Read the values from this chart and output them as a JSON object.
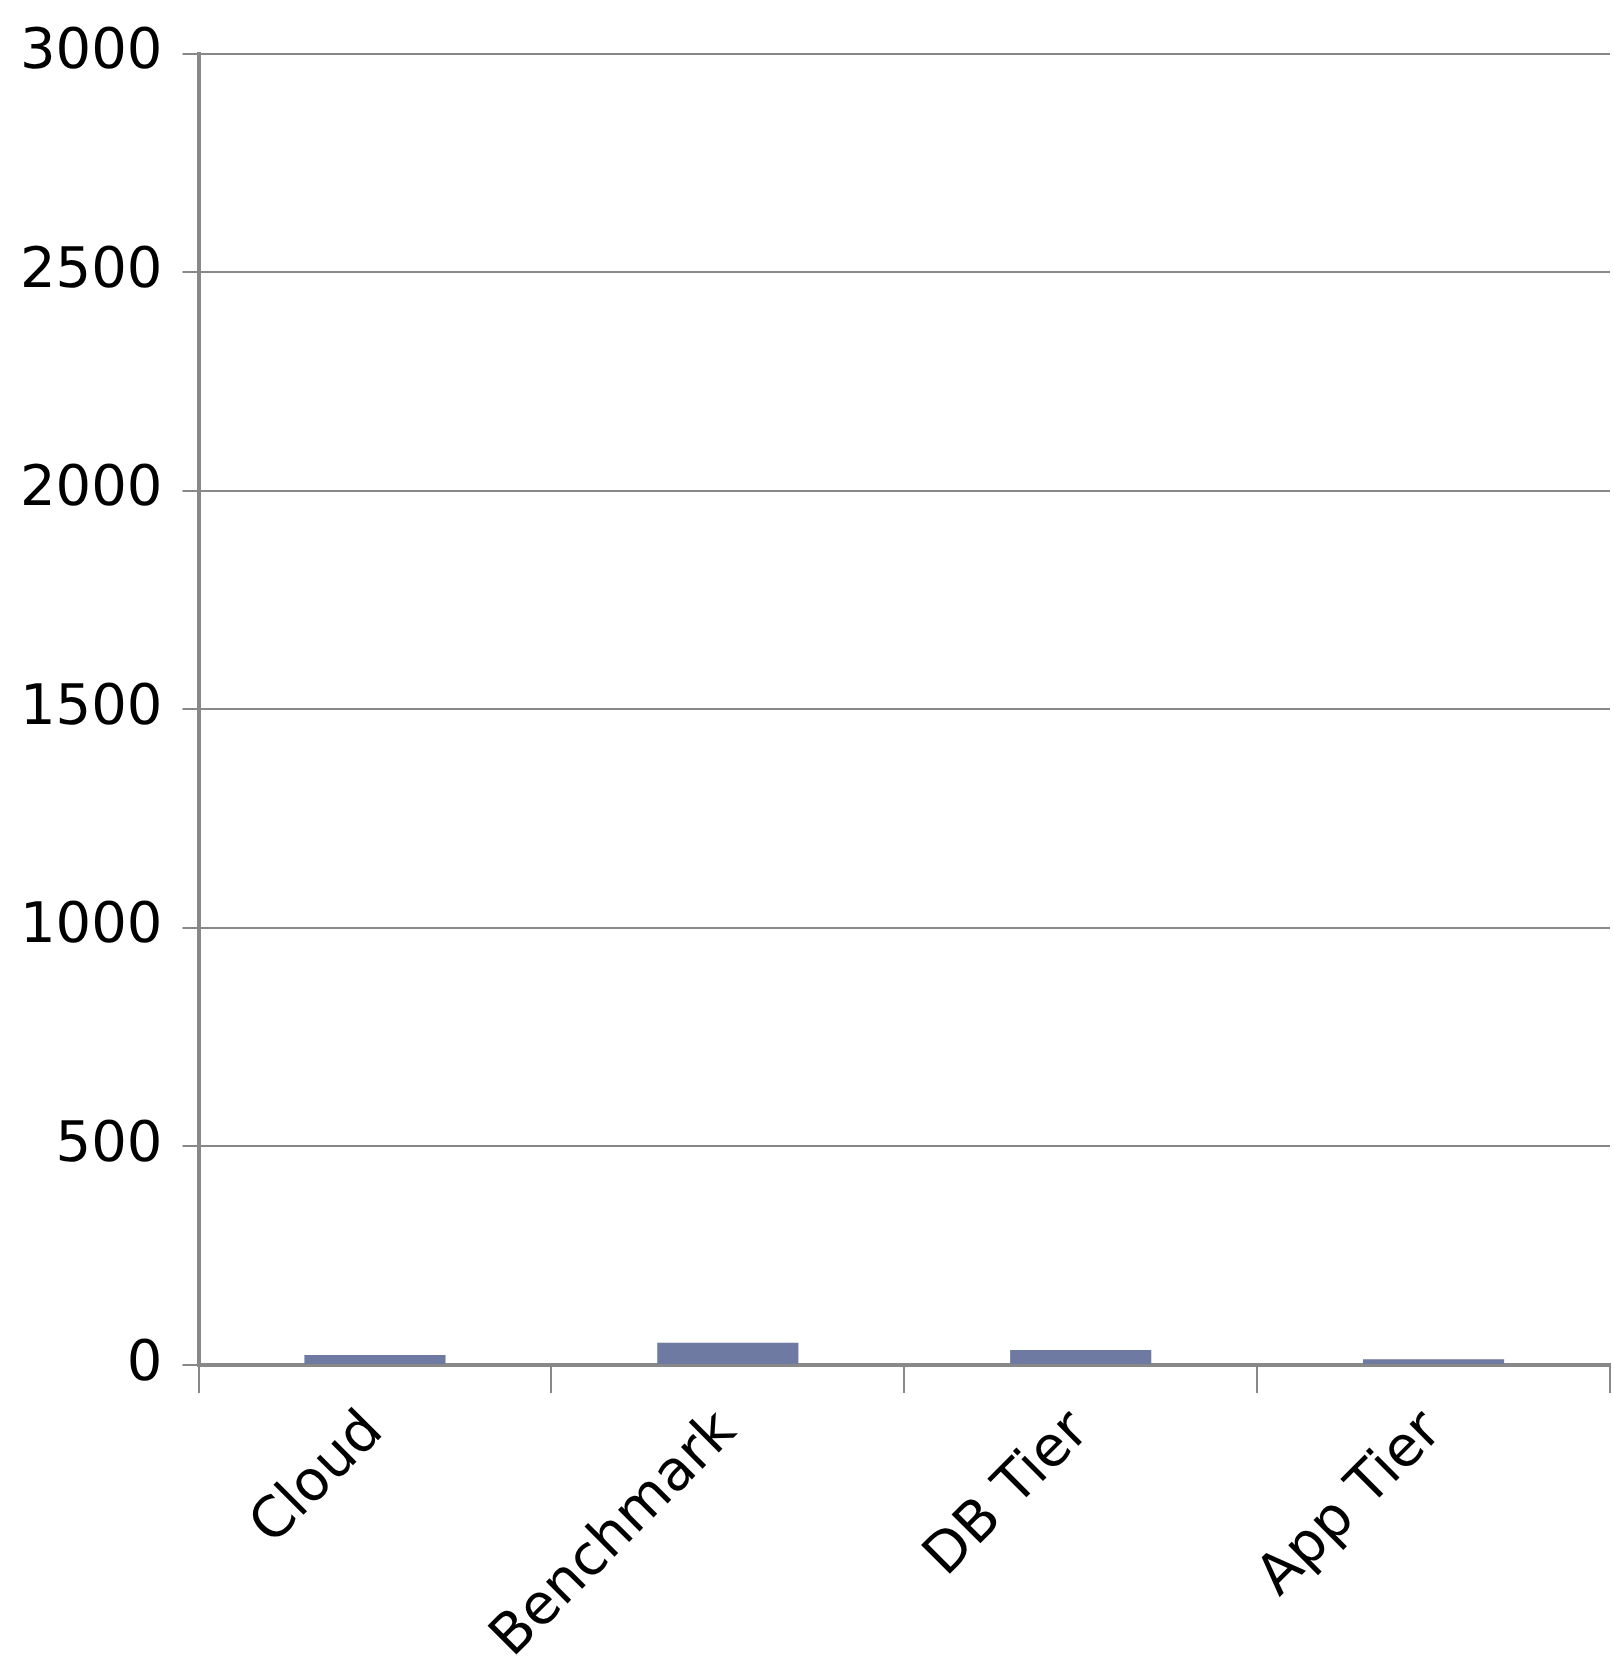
{
  "chart_data": {
    "type": "bar",
    "categories": [
      "Cloud",
      "Benchmark",
      "DB Tier",
      "App Tier"
    ],
    "values": [
      23,
      51,
      34,
      13
    ],
    "color": "#6f7aa3",
    "ylim": [
      0,
      3000
    ],
    "yticks": [
      0,
      500,
      1000,
      1500,
      2000,
      2500,
      3000
    ],
    "grid": "y"
  }
}
